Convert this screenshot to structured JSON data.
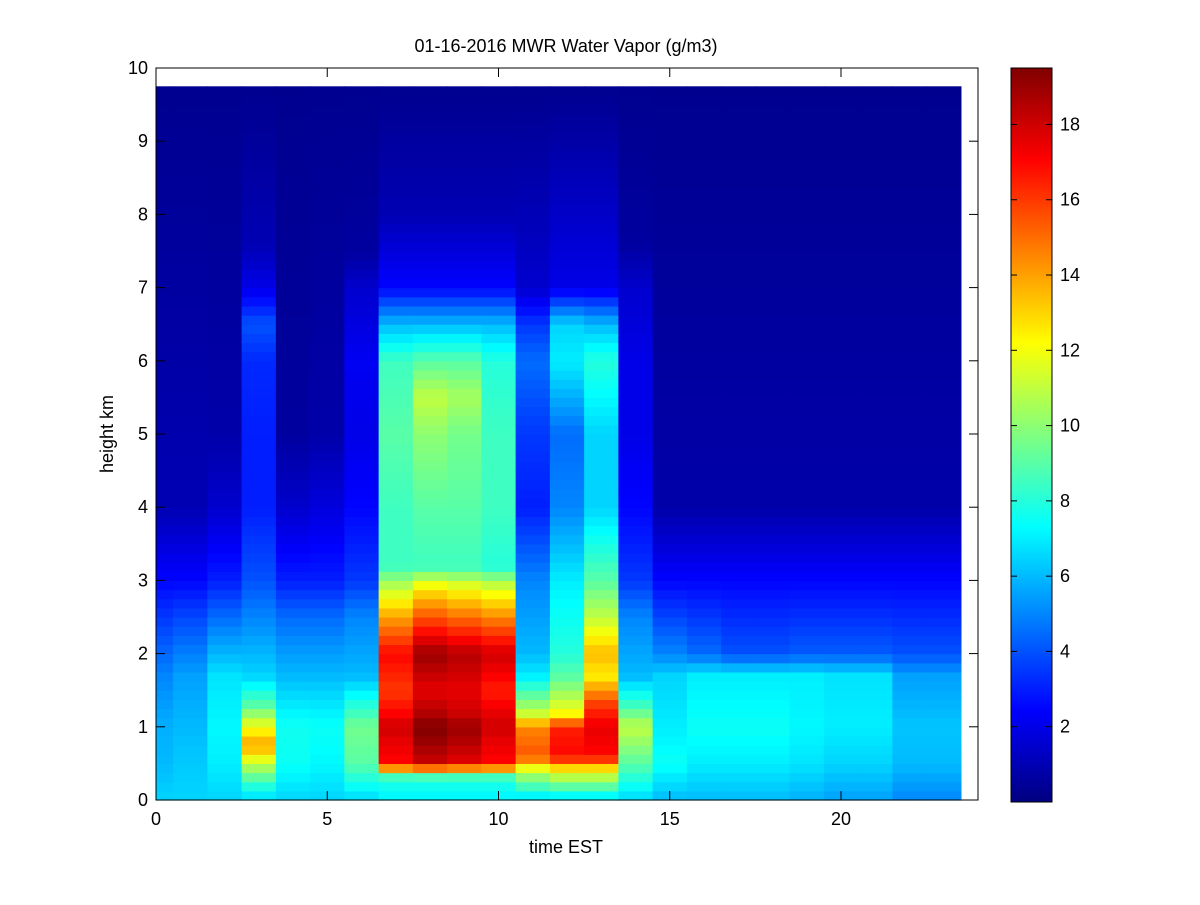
{
  "chart_data": {
    "type": "heatmap",
    "title": "01-16-2016 MWR Water Vapor (g/m3)",
    "xlabel": "time EST",
    "ylabel": "height km",
    "xlim": [
      0,
      24
    ],
    "ylim": [
      0,
      10
    ],
    "x_ticks": [
      0,
      5,
      10,
      15,
      20
    ],
    "y_ticks": [
      0,
      1,
      2,
      3,
      4,
      5,
      6,
      7,
      8,
      9,
      10
    ],
    "data_extent": {
      "x_start": 0,
      "x_end": 23.5,
      "y_start": 0,
      "y_end": 9.75
    },
    "colormap": "jet",
    "colorbar": {
      "range": [
        0,
        19.5
      ],
      "ticks": [
        2,
        4,
        6,
        8,
        10,
        12,
        14,
        16,
        18
      ],
      "colors": [
        "#00008f",
        "#0000ff",
        "#00ffff",
        "#ffff00",
        "#ff0000",
        "#800000"
      ]
    },
    "grid": false,
    "times": [
      0,
      1,
      2,
      3,
      4,
      5,
      6,
      7,
      8,
      9,
      10,
      11,
      12,
      13,
      14,
      15,
      16,
      17,
      18,
      19,
      20,
      21,
      22,
      23
    ],
    "profiles": [
      {
        "t": 0,
        "z": [
          0,
          0.5,
          1.0,
          1.7,
          2.5,
          3.0,
          4.0,
          9.75
        ],
        "v": [
          6.5,
          6.0,
          5.8,
          5.0,
          3.5,
          2.5,
          1.0,
          0.3
        ]
      },
      {
        "t": 1,
        "z": [
          0,
          0.5,
          1.0,
          1.7,
          2.5,
          3.0,
          4.0,
          9.75
        ],
        "v": [
          6.5,
          6.3,
          6.0,
          5.5,
          3.8,
          2.5,
          1.0,
          0.3
        ]
      },
      {
        "t": 2,
        "z": [
          0,
          0.5,
          1.0,
          1.7,
          2.5,
          3.0,
          4.0,
          5.0,
          9.75
        ],
        "v": [
          6.5,
          7.0,
          7.2,
          6.8,
          4.5,
          3.0,
          1.5,
          0.8,
          0.3
        ]
      },
      {
        "t": 3,
        "z": [
          0,
          0.2,
          0.5,
          0.75,
          1.0,
          1.3,
          1.7,
          2.5,
          3.0,
          4.0,
          5.0,
          6.0,
          6.5,
          7.0,
          7.6,
          9.75
        ],
        "v": [
          6.5,
          8.0,
          11.0,
          14.0,
          12.0,
          9.0,
          6.5,
          5.0,
          4.0,
          3.0,
          3.0,
          3.2,
          4.0,
          2.0,
          1.0,
          0.3
        ]
      },
      {
        "t": 4,
        "z": [
          0,
          0.5,
          1.0,
          1.7,
          2.5,
          3.0,
          4.0,
          5.0,
          9.75
        ],
        "v": [
          6.5,
          7.5,
          7.6,
          6.0,
          4.5,
          3.0,
          1.5,
          0.6,
          0.3
        ]
      },
      {
        "t": 5,
        "z": [
          0,
          0.5,
          1.0,
          1.7,
          2.5,
          3.0,
          4.0,
          5.0,
          9.75
        ],
        "v": [
          6.5,
          7.2,
          7.5,
          6.0,
          4.5,
          3.0,
          1.8,
          0.8,
          0.3
        ]
      },
      {
        "t": 6,
        "z": [
          0,
          0.5,
          1.0,
          1.3,
          1.7,
          2.5,
          3.0,
          4.0,
          5.0,
          6.0,
          7.0,
          7.5,
          9.75
        ],
        "v": [
          6.5,
          9.0,
          9.5,
          8.0,
          6.0,
          5.0,
          3.5,
          2.5,
          2.0,
          2.2,
          1.5,
          0.6,
          0.3
        ]
      },
      {
        "t": 7,
        "z": [
          0,
          0.3,
          0.5,
          0.8,
          1.0,
          1.2,
          1.5,
          2.0,
          2.5,
          2.9,
          3.2,
          4.0,
          5.0,
          6.0,
          6.5,
          7.0,
          8.0,
          9.75
        ],
        "v": [
          7.0,
          8.0,
          17.0,
          17.5,
          18.0,
          17.0,
          16.0,
          17.0,
          14.0,
          11.0,
          8.5,
          8.5,
          9.0,
          8.5,
          6.0,
          2.5,
          1.0,
          0.3
        ]
      },
      {
        "t": 8,
        "z": [
          0,
          0.3,
          0.5,
          0.8,
          1.0,
          1.2,
          1.5,
          2.0,
          2.5,
          2.9,
          3.2,
          4.0,
          5.0,
          5.5,
          6.0,
          6.5,
          7.0,
          8.0,
          9.75
        ],
        "v": [
          7.0,
          8.0,
          18.0,
          19.0,
          19.5,
          18.5,
          17.5,
          19.0,
          15.5,
          12.5,
          8.5,
          9.0,
          10.0,
          11.0,
          9.0,
          6.0,
          2.5,
          1.0,
          0.3
        ]
      },
      {
        "t": 9,
        "z": [
          0,
          0.3,
          0.5,
          0.8,
          1.0,
          1.2,
          1.5,
          2.0,
          2.5,
          2.9,
          3.2,
          4.0,
          5.0,
          5.5,
          6.0,
          6.5,
          7.0,
          8.0,
          9.75
        ],
        "v": [
          7.0,
          8.0,
          17.5,
          18.5,
          19.0,
          18.0,
          17.5,
          18.5,
          15.0,
          12.0,
          8.5,
          9.0,
          9.5,
          10.5,
          9.0,
          6.0,
          2.5,
          1.0,
          0.3
        ]
      },
      {
        "t": 10,
        "z": [
          0,
          0.3,
          0.5,
          0.8,
          1.0,
          1.2,
          1.5,
          2.0,
          2.5,
          2.9,
          3.2,
          4.0,
          5.0,
          6.0,
          6.5,
          7.0,
          8.0,
          9.75
        ],
        "v": [
          7.0,
          8.0,
          17.0,
          17.5,
          18.0,
          17.5,
          16.5,
          18.0,
          14.5,
          11.5,
          8.0,
          8.5,
          8.5,
          8.0,
          6.0,
          2.5,
          1.0,
          0.3
        ]
      },
      {
        "t": 11,
        "z": [
          0,
          0.4,
          0.6,
          1.0,
          1.2,
          1.7,
          2.0,
          3.0,
          4.0,
          5.0,
          6.0,
          6.5,
          7.0,
          9.75
        ],
        "v": [
          6.5,
          11.0,
          15.5,
          14.5,
          11.0,
          7.0,
          6.0,
          5.0,
          3.0,
          3.5,
          4.5,
          3.5,
          1.5,
          0.3
        ]
      },
      {
        "t": 12,
        "z": [
          0,
          0.4,
          0.6,
          1.0,
          1.2,
          1.7,
          2.0,
          3.0,
          4.0,
          5.0,
          6.0,
          6.5,
          7.0,
          9.75
        ],
        "v": [
          6.5,
          12.0,
          17.0,
          16.5,
          12.0,
          9.0,
          8.0,
          7.0,
          5.0,
          4.5,
          7.0,
          6.5,
          2.0,
          0.3
        ]
      },
      {
        "t": 13,
        "z": [
          0,
          0.4,
          0.6,
          1.0,
          1.3,
          1.7,
          2.0,
          2.5,
          3.0,
          4.0,
          5.0,
          6.0,
          6.5,
          7.0,
          9.75
        ],
        "v": [
          6.5,
          12.0,
          17.0,
          17.5,
          16.0,
          12.5,
          13.5,
          11.0,
          9.0,
          6.5,
          6.5,
          8.0,
          6.0,
          2.0,
          0.3
        ]
      },
      {
        "t": 14,
        "z": [
          0,
          0.5,
          1.0,
          1.3,
          1.7,
          2.5,
          3.0,
          4.0,
          5.0,
          6.0,
          7.0,
          7.6,
          9.75
        ],
        "v": [
          6.5,
          9.0,
          11.0,
          8.5,
          6.0,
          5.0,
          3.5,
          2.5,
          2.0,
          2.0,
          1.5,
          0.6,
          0.3
        ]
      },
      {
        "t": 15,
        "z": [
          0,
          0.5,
          1.0,
          1.7,
          2.0,
          3.0,
          4.0,
          9.75
        ],
        "v": [
          6.0,
          7.5,
          7.0,
          6.5,
          5.0,
          2.5,
          0.8,
          0.3
        ]
      },
      {
        "t": 16,
        "z": [
          0,
          0.5,
          1.0,
          1.7,
          2.0,
          3.0,
          4.0,
          9.75
        ],
        "v": [
          6.0,
          7.0,
          7.5,
          7.0,
          4.5,
          2.5,
          0.8,
          0.3
        ]
      },
      {
        "t": 17,
        "z": [
          0,
          0.5,
          1.0,
          1.7,
          2.0,
          3.0,
          4.0,
          9.75
        ],
        "v": [
          6.0,
          7.0,
          7.5,
          7.0,
          4.0,
          2.5,
          0.8,
          0.3
        ]
      },
      {
        "t": 18,
        "z": [
          0,
          0.5,
          1.0,
          1.7,
          2.0,
          3.0,
          4.0,
          9.75
        ],
        "v": [
          6.0,
          7.0,
          7.5,
          7.0,
          4.0,
          2.5,
          0.8,
          0.3
        ]
      },
      {
        "t": 19,
        "z": [
          0,
          0.5,
          1.0,
          1.7,
          2.0,
          3.0,
          4.0,
          9.75
        ],
        "v": [
          5.8,
          6.8,
          7.2,
          7.0,
          4.2,
          2.5,
          0.8,
          0.3
        ]
      },
      {
        "t": 20,
        "z": [
          0,
          0.5,
          1.0,
          1.7,
          2.0,
          3.0,
          4.0,
          9.75
        ],
        "v": [
          5.5,
          6.5,
          7.0,
          6.8,
          4.2,
          2.5,
          0.8,
          0.3
        ]
      },
      {
        "t": 21,
        "z": [
          0,
          0.5,
          1.0,
          1.7,
          2.0,
          3.0,
          4.0,
          9.75
        ],
        "v": [
          5.5,
          6.5,
          7.0,
          6.8,
          4.2,
          2.5,
          0.8,
          0.3
        ]
      },
      {
        "t": 22,
        "z": [
          0,
          0.5,
          1.0,
          1.7,
          2.0,
          3.0,
          4.0,
          9.75
        ],
        "v": [
          5.0,
          6.0,
          6.2,
          5.5,
          4.0,
          2.5,
          0.8,
          0.3
        ]
      },
      {
        "t": 23,
        "z": [
          0,
          0.5,
          1.0,
          1.7,
          2.0,
          3.0,
          4.0,
          9.75
        ],
        "v": [
          5.0,
          6.0,
          6.2,
          5.5,
          4.0,
          2.5,
          0.8,
          0.3
        ]
      }
    ]
  }
}
